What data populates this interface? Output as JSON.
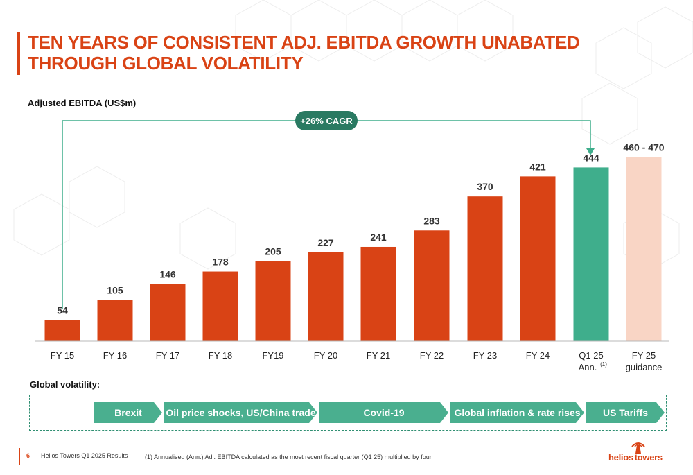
{
  "title": "TEN YEARS OF CONSISTENT ADJ. EBITDA GROWTH UNABATED THROUGH GLOBAL VOLATILITY",
  "colors": {
    "bar": "#d94315",
    "highlight": "#3fae8c",
    "guidance": "#f9d5c5",
    "accent_dark": "#2a7a62"
  },
  "chart_data": {
    "type": "bar",
    "ylabel": "Adjusted EBITDA (US$m)",
    "categories": [
      "FY 15",
      "FY 16",
      "FY 17",
      "FY 18",
      "FY19",
      "FY 20",
      "FY 21",
      "FY 22",
      "FY 23",
      "FY 24",
      "Q1 25 Ann.",
      "FY 25 guidance"
    ],
    "values": [
      54,
      105,
      146,
      178,
      205,
      227,
      241,
      283,
      370,
      421,
      444,
      470
    ],
    "value_labels": [
      "54",
      "105",
      "146",
      "178",
      "205",
      "227",
      "241",
      "283",
      "370",
      "421",
      "444",
      "460 - 470"
    ],
    "styles": [
      "actual",
      "actual",
      "actual",
      "actual",
      "actual",
      "actual",
      "actual",
      "actual",
      "actual",
      "actual",
      "annualised",
      "guidance"
    ],
    "annotation": "+26% CAGR",
    "grid": false,
    "ylim": [
      0,
      500
    ]
  },
  "q1_label_line1": "Q1 25",
  "q1_label_line2": "Ann.",
  "q1_superscript": "(1)",
  "guidance_label_line1": "FY 25",
  "guidance_label_line2": "guidance",
  "volatility": {
    "title": "Global volatility:",
    "events": [
      "Brexit",
      "Oil price shocks, US/China trade",
      "Covid-19",
      "Global inflation & rate rises",
      "US Tariffs"
    ]
  },
  "footer": {
    "page": "6",
    "company": "Helios Towers Q1 2025 Results",
    "footnote": "(1)    Annualised (Ann.) Adj. EBITDA calculated as the most recent fiscal quarter (Q1 25) multiplied by four."
  },
  "logo": {
    "text_left": "helios",
    "text_right": "towers"
  }
}
